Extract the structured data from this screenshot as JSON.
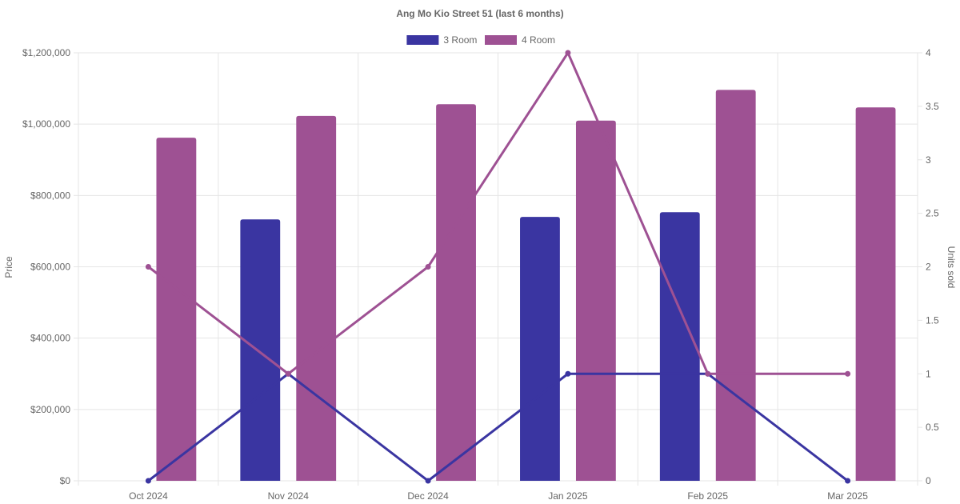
{
  "chart_data": {
    "type": "bar",
    "title": "Ang Mo Kio Street 51 (last 6 months)",
    "categories": [
      "Oct 2024",
      "Nov 2024",
      "Dec 2024",
      "Jan 2025",
      "Feb 2025",
      "Mar 2025"
    ],
    "y_left": {
      "label": "Price",
      "ylim": [
        0,
        1200000
      ],
      "ticks": [
        "$0",
        "$200,000",
        "$400,000",
        "$600,000",
        "$800,000",
        "$1,000,000",
        "$1,200,000"
      ],
      "tick_values": [
        0,
        200000,
        400000,
        600000,
        800000,
        1000000,
        1200000
      ]
    },
    "y_right": {
      "label": "Units sold",
      "ylim": [
        0,
        4
      ],
      "ticks": [
        "0",
        "0.5",
        "1",
        "1.5",
        "2",
        "2.5",
        "3",
        "3.5",
        "4"
      ],
      "tick_values": [
        0,
        0.5,
        1,
        1.5,
        2,
        2.5,
        3,
        3.5,
        4
      ]
    },
    "grid": true,
    "legend_position": "top-center",
    "series": [
      {
        "name": "3 Room",
        "color": "#3a35a1",
        "prices": [
          null,
          733000,
          null,
          740000,
          753000,
          null
        ],
        "units_sold": [
          0,
          1,
          0,
          1,
          1,
          0
        ]
      },
      {
        "name": "4 Room",
        "color": "#9e5193",
        "prices": [
          962000,
          1023000,
          1056000,
          1010000,
          1096000,
          1047000
        ],
        "units_sold": [
          2,
          1,
          2,
          4,
          1,
          1
        ]
      }
    ]
  }
}
